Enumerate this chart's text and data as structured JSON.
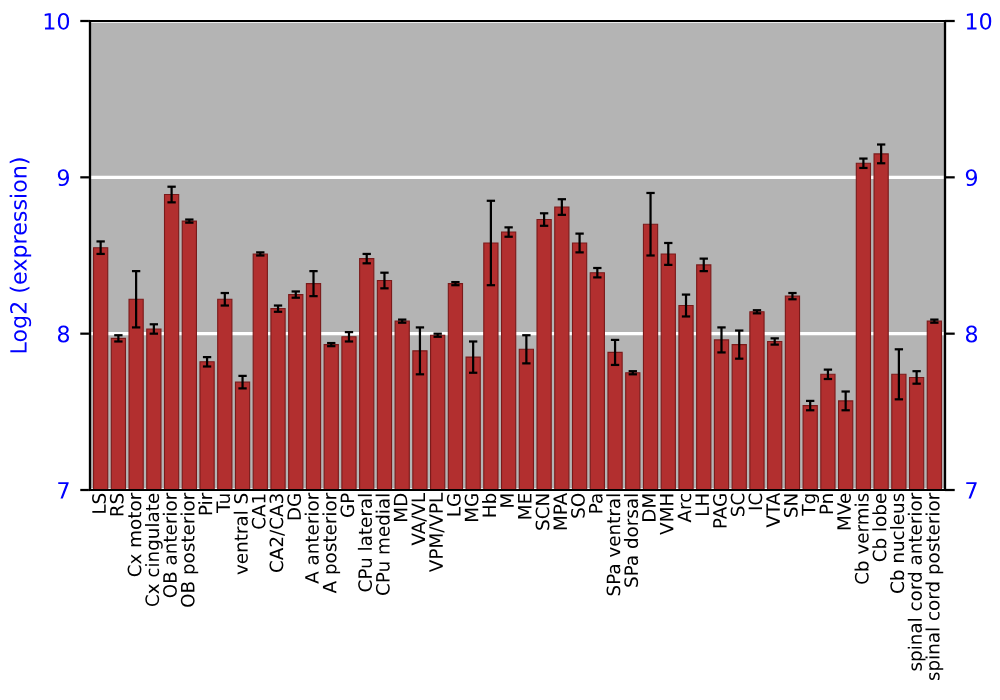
{
  "chart_data": {
    "type": "bar",
    "ylabel": "Log2 (expression)",
    "categories": [
      "LS",
      "RS",
      "Cx motor",
      "Cx cingulate",
      "OB anterior",
      "OB posterior",
      "Pir",
      "Tu",
      "ventral S",
      "CA1",
      "CA2/CA3",
      "DG",
      "A anterior",
      "A posterior",
      "GP",
      "CPu lateral",
      "CPu medial",
      "MD",
      "VA/VL",
      "VPM/VPL",
      "LG",
      "MG",
      "Hb",
      "M",
      "ME",
      "SCN",
      "MPA",
      "SO",
      "Pa",
      "SPa ventral",
      "SPa dorsal",
      "DM",
      "VMH",
      "Arc",
      "LH",
      "PAG",
      "SC",
      "IC",
      "VTA",
      "SN",
      "Tg",
      "Pn",
      "MVe",
      "Cb vermis",
      "Cb lobe",
      "Cb nucleus",
      "spinal cord anterior",
      "spinal cord posterior"
    ],
    "values": [
      8.55,
      7.97,
      8.22,
      8.03,
      8.89,
      8.72,
      7.82,
      8.22,
      7.69,
      8.51,
      8.16,
      8.25,
      8.32,
      7.93,
      7.98,
      8.48,
      8.34,
      8.08,
      7.89,
      7.99,
      8.32,
      7.85,
      8.58,
      8.65,
      7.9,
      8.73,
      8.81,
      8.58,
      8.39,
      7.88,
      7.75,
      8.7,
      8.51,
      8.18,
      8.44,
      7.96,
      7.93,
      8.14,
      7.95,
      8.24,
      7.54,
      7.74,
      7.57,
      9.09,
      9.15,
      7.74,
      7.72,
      8.08
    ],
    "errors": [
      0.04,
      0.02,
      0.18,
      0.03,
      0.05,
      0.01,
      0.03,
      0.04,
      0.04,
      0.01,
      0.02,
      0.02,
      0.08,
      0.01,
      0.03,
      0.03,
      0.05,
      0.01,
      0.15,
      0.01,
      0.01,
      0.1,
      0.27,
      0.03,
      0.09,
      0.04,
      0.05,
      0.06,
      0.03,
      0.08,
      0.01,
      0.2,
      0.07,
      0.07,
      0.04,
      0.08,
      0.09,
      0.01,
      0.02,
      0.02,
      0.03,
      0.03,
      0.06,
      0.03,
      0.06,
      0.16,
      0.04,
      0.01
    ],
    "color": "#b22f2f",
    "ylim": [
      7,
      10
    ],
    "yticks": [
      7,
      8,
      9,
      10
    ],
    "y2lim": [
      7,
      10
    ],
    "y2ticks": [
      7,
      8,
      9,
      10
    ],
    "grid": "y"
  }
}
